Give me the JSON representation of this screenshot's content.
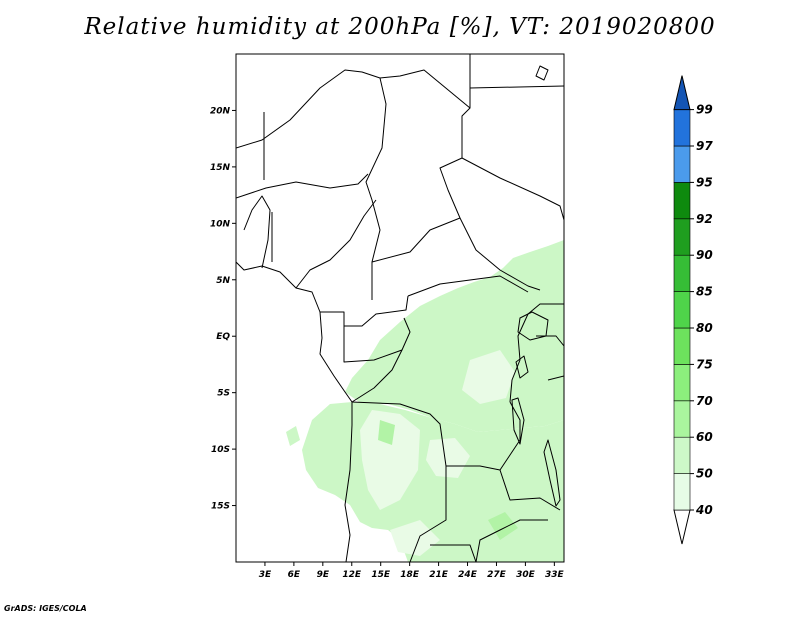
{
  "title": "Relative humidity at 200hPa [%], VT: 2019020800",
  "footer": "GrADS: IGES/COLA",
  "map": {
    "lon_range": [
      0,
      34
    ],
    "lat_range": [
      -20,
      25
    ],
    "lat_ticks": [
      {
        "value": 20,
        "label": "20N"
      },
      {
        "value": 15,
        "label": "15N"
      },
      {
        "value": 10,
        "label": "10N"
      },
      {
        "value": 5,
        "label": "5N"
      },
      {
        "value": 0,
        "label": "EQ"
      },
      {
        "value": -5,
        "label": "5S"
      },
      {
        "value": -10,
        "label": "10S"
      },
      {
        "value": -15,
        "label": "15S"
      }
    ],
    "lon_ticks": [
      {
        "value": 3,
        "label": "3E"
      },
      {
        "value": 6,
        "label": "6E"
      },
      {
        "value": 9,
        "label": "9E"
      },
      {
        "value": 12,
        "label": "12E"
      },
      {
        "value": 15,
        "label": "15E"
      },
      {
        "value": 18,
        "label": "18E"
      },
      {
        "value": 21,
        "label": "21E"
      },
      {
        "value": 24,
        "label": "24E"
      },
      {
        "value": 27,
        "label": "27E"
      },
      {
        "value": 30,
        "label": "30E"
      },
      {
        "value": 33,
        "label": "33E"
      }
    ]
  },
  "colorbar": {
    "levels": [
      "40",
      "50",
      "60",
      "70",
      "75",
      "80",
      "85",
      "90",
      "92",
      "95",
      "97",
      "99"
    ],
    "colors": [
      "#ffffff",
      "#e6fce6",
      "#cdf8c8",
      "#aaf59e",
      "#8cef7d",
      "#6de25d",
      "#4fd44a",
      "#36bd36",
      "#1f9e1f",
      "#0e8a0e",
      "#4b9bec",
      "#2273dc",
      "#1455b4"
    ]
  },
  "humid_areas": [
    {
      "name": "congo-basin",
      "level": "50"
    },
    {
      "name": "east-africa",
      "level": "50"
    },
    {
      "name": "angola-zambia",
      "level": "50"
    }
  ]
}
